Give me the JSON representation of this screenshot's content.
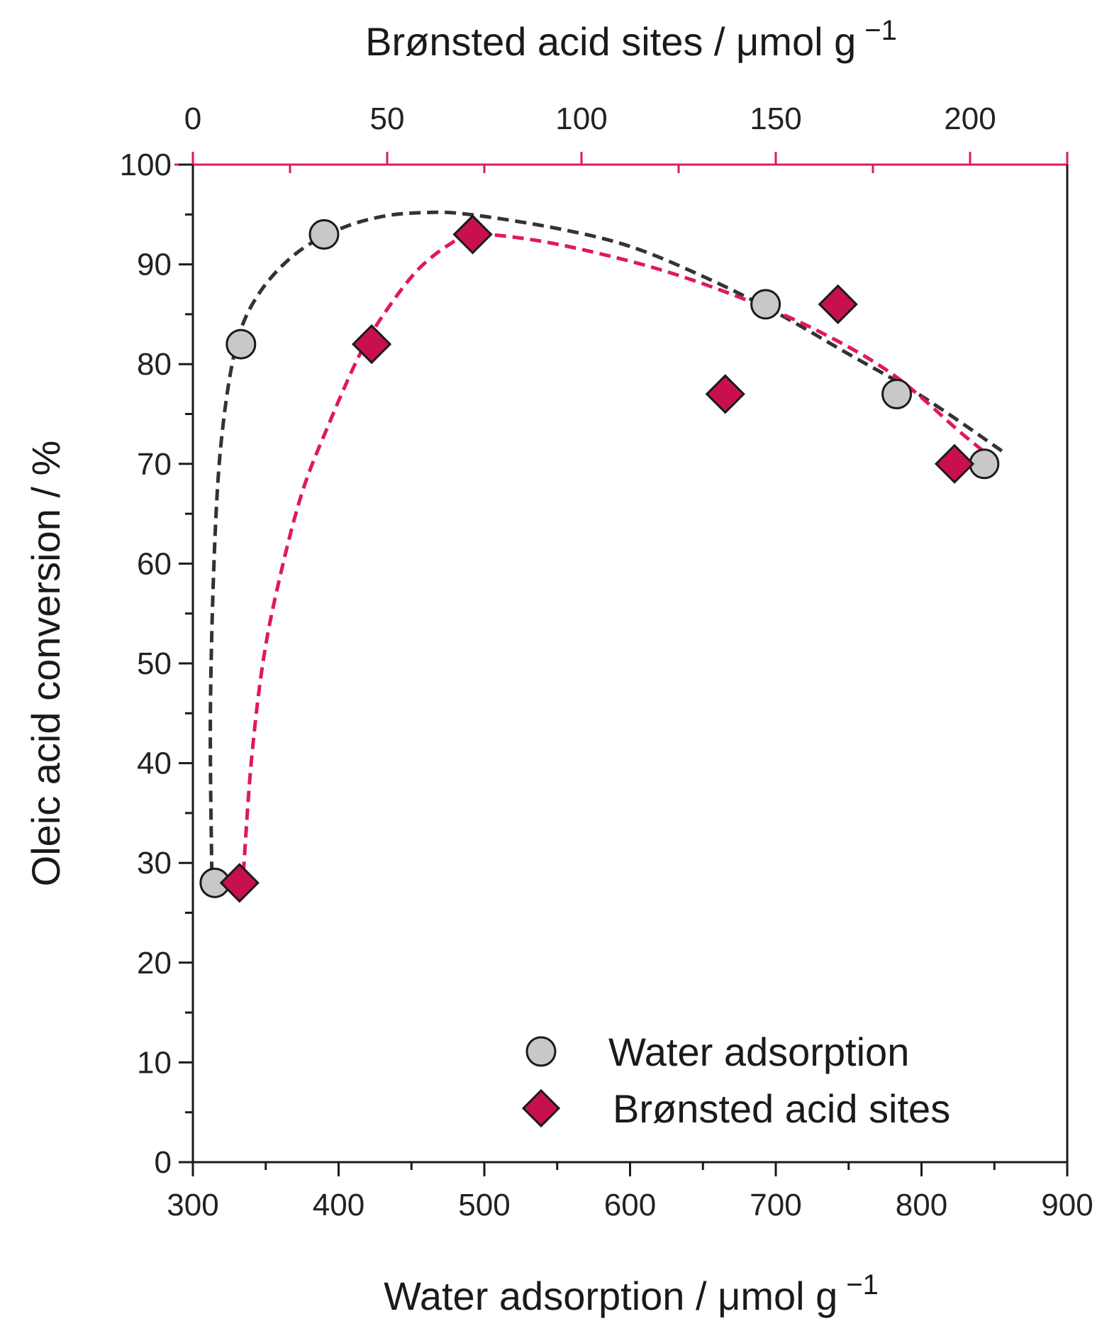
{
  "chart_data": {
    "type": "scatter",
    "title": "",
    "ylabel": "Oleic acid conversion / %",
    "ylim": [
      0,
      100
    ],
    "yticks": [
      0,
      10,
      20,
      30,
      40,
      50,
      60,
      70,
      80,
      90,
      100
    ],
    "x_bottom": {
      "label": "Water adsorption / μmol g",
      "label_superscript": "−1",
      "lim": [
        300,
        900
      ],
      "ticks": [
        300,
        400,
        500,
        600,
        700,
        800,
        900
      ]
    },
    "x_top": {
      "label": "Brønsted acid sites / μmol g",
      "label_superscript": "−1",
      "lim": [
        0,
        225
      ],
      "ticks": [
        0,
        50,
        100,
        150,
        200
      ],
      "color": "#e0185e"
    },
    "series": [
      {
        "name": "Water adsorption",
        "axis": "bottom",
        "marker": "circle",
        "fill": "#c8c8c8",
        "stroke": "#1a1a1a",
        "points": [
          [
            315,
            28
          ],
          [
            333,
            82
          ],
          [
            390,
            93
          ],
          [
            693,
            86
          ],
          [
            783,
            77
          ],
          [
            843,
            70
          ]
        ],
        "fit": [
          [
            313,
            29
          ],
          [
            312,
            45
          ],
          [
            315,
            62
          ],
          [
            320,
            73
          ],
          [
            330,
            82
          ],
          [
            345,
            87
          ],
          [
            370,
            91
          ],
          [
            400,
            93.5
          ],
          [
            430,
            94.8
          ],
          [
            460,
            95.2
          ],
          [
            490,
            95
          ],
          [
            550,
            93.6
          ],
          [
            600,
            91.8
          ],
          [
            650,
            88.8
          ],
          [
            700,
            85.2
          ],
          [
            750,
            81
          ],
          [
            800,
            76.8
          ],
          [
            858,
            71
          ]
        ],
        "fit_color": "#333333"
      },
      {
        "name": "Brønsted acid sites",
        "axis": "top",
        "marker": "diamond",
        "fill": "#c8104f",
        "stroke": "#1a1a1a",
        "points": [
          [
            12,
            28
          ],
          [
            46,
            82
          ],
          [
            72,
            93
          ],
          [
            137,
            77
          ],
          [
            166,
            86
          ],
          [
            196,
            70
          ]
        ],
        "fit": [
          [
            13,
            29
          ],
          [
            15,
            40
          ],
          [
            18,
            50
          ],
          [
            22,
            58
          ],
          [
            28,
            67
          ],
          [
            35,
            74
          ],
          [
            43,
            81
          ],
          [
            50,
            85.5
          ],
          [
            58,
            89.5
          ],
          [
            66,
            92
          ],
          [
            72,
            93
          ],
          [
            85,
            92.6
          ],
          [
            100,
            91.5
          ],
          [
            120,
            89.5
          ],
          [
            140,
            86.8
          ],
          [
            160,
            83.5
          ],
          [
            180,
            79
          ],
          [
            198,
            73
          ],
          [
            206,
            70.5
          ]
        ],
        "fit_color": "#e0185e"
      }
    ],
    "legend": {
      "position": "bottom-right",
      "entries": [
        "Water adsorption",
        "Brønsted acid sites"
      ]
    }
  }
}
